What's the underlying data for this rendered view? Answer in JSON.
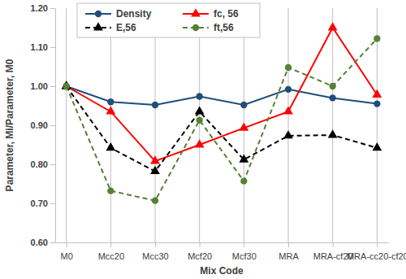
{
  "chart_data": {
    "type": "line",
    "x_label": "Mix Code",
    "y_label": "Parameter, Mi/Parameter, M0",
    "categories": [
      "M0",
      "Mcc20",
      "Mcc30",
      "Mcf20",
      "Mcf30",
      "MRA",
      "MRA-cf20",
      "MRA-cc20-cf20"
    ],
    "series": [
      {
        "name": "Density",
        "color": "#1f4e79",
        "marker": "circle",
        "line_style": "solid",
        "values": [
          1.0,
          0.96,
          0.952,
          0.974,
          0.952,
          0.992,
          0.97,
          0.955
        ]
      },
      {
        "name": "fc, 56",
        "color": "#ff0000",
        "marker": "triangle",
        "line_style": "solid",
        "values": [
          1.0,
          0.935,
          0.808,
          0.85,
          0.893,
          0.935,
          1.15,
          0.978
        ]
      },
      {
        "name": "E,56",
        "color": "#000000",
        "marker": "triangle",
        "line_style": "dashed",
        "values": [
          1.0,
          0.842,
          0.782,
          0.935,
          0.812,
          0.873,
          0.875,
          0.842
        ]
      },
      {
        "name": "ft,56",
        "color": "#548235",
        "marker": "circle",
        "line_style": "dashed",
        "values": [
          1.0,
          0.732,
          0.707,
          0.913,
          0.757,
          1.048,
          1.0,
          1.122
        ]
      }
    ],
    "ylim": [
      0.6,
      1.2
    ],
    "yticks": [
      {
        "value": 0.6,
        "label": "0.60"
      },
      {
        "value": 0.7,
        "label": "0.70"
      },
      {
        "value": 0.8,
        "label": "0.80"
      },
      {
        "value": 0.9,
        "label": "0.90"
      },
      {
        "value": 1.0,
        "label": "1.00"
      },
      {
        "value": 1.1,
        "label": "1.10"
      },
      {
        "value": 1.2,
        "label": "1.20"
      }
    ],
    "grid": "x",
    "legend": "top-left"
  }
}
